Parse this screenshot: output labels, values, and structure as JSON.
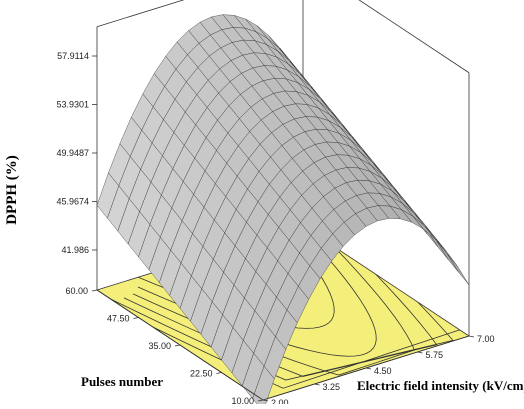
{
  "chart_data": {
    "type": "surface3d",
    "title": "",
    "zlabel": "DPPH (%)",
    "xlabel": "Pulses number",
    "ylabel": "Electric field intensity (kV/cm)",
    "x_ticks": [
      "60.00",
      "47.50",
      "35.00",
      "22.50",
      "10.00"
    ],
    "y_ticks": [
      "3.25",
      "4.50",
      "5.75",
      "7.00"
    ],
    "y_first_label": "2.00",
    "z_ticks": [
      "57.9114",
      "53.9301",
      "49.9487",
      "45.9674",
      "41.986"
    ],
    "x_range": [
      10,
      60
    ],
    "y_range": [
      2,
      7
    ],
    "z_range": [
      41.986,
      57.9114
    ],
    "surface_peak": {
      "electric_field": 4.8,
      "pulses": 60,
      "dpph": 58.2
    },
    "surface_edges": {
      "field_2_pulses_10": 38.6,
      "field_7_pulses_10": 42.0,
      "field_2_pulses_60": 48.8,
      "field_7_pulses_60": 47.6
    },
    "contour_floor": true,
    "colors": {
      "surface": "#9a9a9a",
      "floor": "#f4ef7a",
      "mesh": "#222222"
    }
  }
}
